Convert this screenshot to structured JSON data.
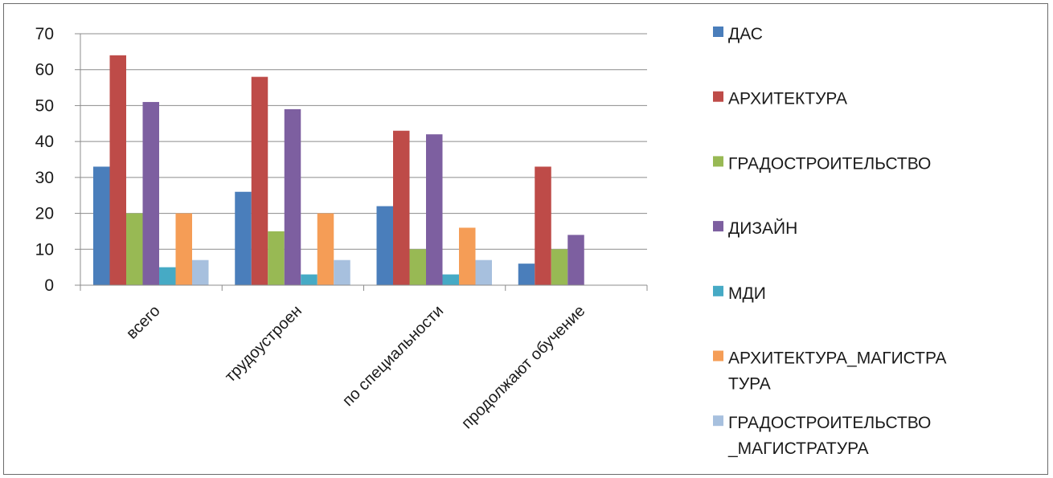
{
  "chart_data": {
    "type": "bar",
    "categories": [
      "всего",
      "трудоустроен",
      "по специальности",
      "продолжают обучение"
    ],
    "series": [
      {
        "name": "ДАС",
        "color": "#4a7ebb",
        "values": [
          33,
          26,
          22,
          6
        ]
      },
      {
        "name": "АРХИТЕКТУРА",
        "color": "#be4b48",
        "values": [
          64,
          58,
          43,
          33
        ]
      },
      {
        "name": "ГРАДОСТРОИТЕЛЬСТВО",
        "color": "#98b954",
        "values": [
          20,
          15,
          10,
          10
        ]
      },
      {
        "name": "ДИЗАЙН",
        "color": "#7d5fa0",
        "values": [
          51,
          49,
          42,
          14
        ]
      },
      {
        "name": "МДИ",
        "color": "#46aac5",
        "values": [
          5,
          3,
          3,
          null
        ]
      },
      {
        "name": "АРХИТЕКТУРА_МАГИСТРАТУРА",
        "legend_lines": [
          "АРХИТЕКТУРА_МАГИСТРА",
          "ТУРА"
        ],
        "color": "#f59d56",
        "values": [
          20,
          20,
          16,
          null
        ]
      },
      {
        "name": "ГРАДОСТРОИТЕЛЬСТВО_МАГИСТРАТУРА",
        "legend_lines": [
          "ГРАДОСТРОИТЕЛЬСТВО",
          "_МАГИСТРАТУРА"
        ],
        "color": "#a7c0de",
        "values": [
          7,
          7,
          7,
          null
        ]
      }
    ],
    "ylim": [
      0,
      70
    ],
    "yticks": [
      0,
      10,
      20,
      30,
      40,
      50,
      60,
      70
    ],
    "grid": true,
    "legend": "right"
  }
}
